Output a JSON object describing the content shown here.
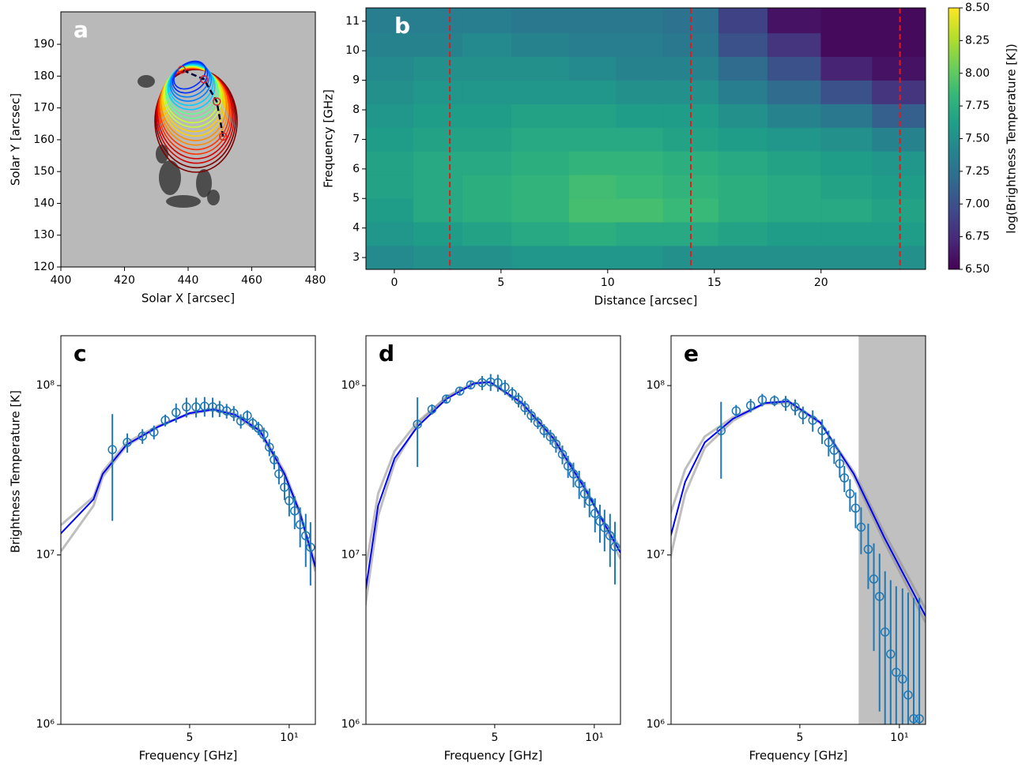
{
  "chart_data": [
    {
      "type": "solar-map",
      "label": "a",
      "xlabel": "Solar X [arcsec]",
      "ylabel": "Solar Y [arcsec]",
      "xlim": [
        400,
        480
      ],
      "ylim": [
        120,
        200.2
      ],
      "xticks": [
        400,
        420,
        440,
        460,
        480
      ],
      "yticks": [
        120,
        130,
        140,
        150,
        160,
        170,
        180,
        190
      ],
      "path": {
        "x": [
          451,
          449,
          445,
          438
        ],
        "y": [
          161,
          172,
          179,
          182
        ],
        "color": "#000033"
      }
    },
    {
      "type": "heatmap",
      "label": "b",
      "xlabel": "Distance [arcsec]",
      "ylabel": "Frequency [GHz]",
      "xlim": [
        -1.33,
        24.9
      ],
      "ylim": [
        2.6,
        11.45
      ],
      "xticks": [
        0,
        5,
        10,
        15,
        20
      ],
      "yticks": [
        3,
        4,
        5,
        6,
        7,
        8,
        9,
        10,
        11
      ],
      "x_edges": [
        -1.33,
        0.9,
        3.2,
        5.5,
        8.2,
        10.4,
        12.6,
        15.2,
        17.5,
        20.0,
        22.4,
        24.9
      ],
      "y_edges": [
        2.6,
        3.4,
        4.2,
        5.0,
        5.8,
        6.6,
        7.4,
        8.2,
        9.0,
        9.8,
        10.6,
        11.45
      ],
      "values": [
        [
          7.45,
          7.5,
          7.5,
          7.55,
          7.55,
          7.55,
          7.5,
          7.5,
          7.5,
          7.5,
          7.5
        ],
        [
          7.55,
          7.6,
          7.65,
          7.7,
          7.75,
          7.7,
          7.7,
          7.65,
          7.6,
          7.6,
          7.6
        ],
        [
          7.6,
          7.7,
          7.75,
          7.8,
          7.9,
          7.9,
          7.85,
          7.75,
          7.7,
          7.7,
          7.65
        ],
        [
          7.65,
          7.7,
          7.75,
          7.8,
          7.88,
          7.85,
          7.8,
          7.75,
          7.7,
          7.65,
          7.6
        ],
        [
          7.65,
          7.7,
          7.7,
          7.75,
          7.8,
          7.8,
          7.75,
          7.7,
          7.65,
          7.6,
          7.55
        ],
        [
          7.6,
          7.65,
          7.65,
          7.7,
          7.7,
          7.7,
          7.65,
          7.6,
          7.55,
          7.5,
          7.4
        ],
        [
          7.55,
          7.6,
          7.6,
          7.65,
          7.65,
          7.6,
          7.6,
          7.5,
          7.4,
          7.3,
          7.1
        ],
        [
          7.5,
          7.55,
          7.55,
          7.55,
          7.55,
          7.5,
          7.5,
          7.35,
          7.2,
          7.0,
          6.8
        ],
        [
          7.45,
          7.5,
          7.5,
          7.5,
          7.45,
          7.4,
          7.4,
          7.2,
          7.0,
          6.7,
          6.6
        ],
        [
          7.4,
          7.4,
          7.45,
          7.4,
          7.35,
          7.35,
          7.3,
          7.0,
          6.8,
          6.55,
          6.55
        ],
        [
          7.35,
          7.35,
          7.35,
          7.3,
          7.3,
          7.3,
          7.25,
          6.9,
          6.6,
          6.55,
          6.55
        ]
      ],
      "colormap": "viridis",
      "colorbar": {
        "label": "log(Brightness Temperature [K])",
        "lim": [
          6.5,
          8.5
        ],
        "ticks": [
          {
            "value": 6.5,
            "label": "6.50"
          },
          {
            "value": 6.75,
            "label": "6.75"
          },
          {
            "value": 7,
            "label": "7.00"
          },
          {
            "value": 7.25,
            "label": "7.25"
          },
          {
            "value": 7.5,
            "label": "7.50"
          },
          {
            "value": 7.75,
            "label": "7.75"
          },
          {
            "value": 8,
            "label": "8.00"
          },
          {
            "value": 8.25,
            "label": "8.25"
          },
          {
            "value": 8.5,
            "label": "8.50"
          }
        ]
      },
      "vlines": {
        "x": [
          2.6,
          13.9,
          23.7
        ],
        "color": "#e31a1c"
      }
    },
    {
      "type": "spectrum",
      "label": "c",
      "xlabel": "Frequency [GHz]",
      "ylabel": "Brightness Temperature [K]",
      "log_x": true,
      "log_y": true,
      "xlim": [
        2.04,
        12
      ],
      "ylim": [
        1000000,
        197000000
      ],
      "xticks": [
        5,
        {
          "value": 10,
          "label": "10¹"
        }
      ],
      "yticks": [
        {
          "value": 1000000,
          "label": "10⁶"
        },
        {
          "value": 10000000,
          "label": "10⁷"
        },
        {
          "value": 100000000,
          "label": "10⁸"
        }
      ],
      "observed": {
        "color": "#1f77b4",
        "x": [
          2.92,
          3.24,
          3.6,
          3.9,
          4.22,
          4.55,
          4.89,
          5.23,
          5.55,
          5.87,
          6.16,
          6.47,
          6.8,
          7.14,
          7.47,
          7.76,
          8.07,
          8.38,
          8.71,
          9.01,
          9.31,
          9.68,
          10.0,
          10.39,
          10.79,
          11.22,
          11.6
        ],
        "values": [
          41900000.0,
          46200000.0,
          50300000.0,
          53100000.0,
          62400000.0,
          69400000.0,
          74800000.0,
          74800000.0,
          75600000.0,
          74800000.0,
          73200000.0,
          70900000.0,
          68700000.0,
          61700000.0,
          66500000.0,
          59800000.0,
          56000000.0,
          51400000.0,
          43300000.0,
          36500000.0,
          30100000.0,
          25100000.0,
          20900000.0,
          18200000.0,
          15100000.0,
          13000000.0,
          11100000.0
        ],
        "yerr": [
          26000000.0,
          6000000.0,
          5000000.0,
          5000000.0,
          5000000.0,
          9000000.0,
          10000000.0,
          10000000.0,
          10000000.0,
          10000000.0,
          8000000.0,
          7000000.0,
          7000000.0,
          6000000.0,
          5000000.0,
          5000000.0,
          5000000.0,
          5000000.0,
          5000000.0,
          4500000.0,
          4000000.0,
          4000000.0,
          4000000.0,
          4000000.0,
          4000000.0,
          4500000.0,
          4500000.0
        ]
      },
      "fit": {
        "color": "#0000ff",
        "x": [
          2.04,
          2.56,
          2.73,
          3.22,
          4.02,
          5.0,
          5.9,
          6.89,
          8.15,
          9.68,
          10.79,
          12.0
        ],
        "values": [
          13400000.0,
          21300000.0,
          30100000.0,
          44700000.0,
          57200000.0,
          68700000.0,
          72400000.0,
          67000000.0,
          54200000.0,
          30100000.0,
          17600000.0,
          8500000.0
        ]
      },
      "samples": {
        "color": "#888888",
        "values": [
          [
            10500000.0,
            19500000.0,
            29000000.0,
            44000000.0,
            57000000.0,
            69000000.0,
            73000000.0,
            68000000.0,
            55000000.0,
            31000000.0,
            18000000.0,
            8000000.0
          ],
          [
            15000000.0,
            22000000.0,
            31000000.0,
            46000000.0,
            58000000.0,
            68000000.0,
            72000000.0,
            66000000.0,
            53000000.0,
            29500000.0,
            17000000.0,
            9000000.0
          ]
        ]
      }
    },
    {
      "type": "spectrum",
      "label": "d",
      "xlabel": "Frequency [GHz]",
      "log_x": true,
      "log_y": true,
      "xlim": [
        2.04,
        12
      ],
      "ylim": [
        1000000,
        197000000
      ],
      "xticks": [
        5,
        {
          "value": 10,
          "label": "10¹"
        }
      ],
      "yticks": [
        {
          "value": 1000000,
          "label": "10⁶"
        },
        {
          "value": 10000000,
          "label": "10⁷"
        },
        {
          "value": 100000000,
          "label": "10⁸"
        }
      ],
      "observed": {
        "color": "#1f77b4",
        "x": [
          2.92,
          3.23,
          3.57,
          3.92,
          4.23,
          4.58,
          4.86,
          5.11,
          5.37,
          5.65,
          5.9,
          6.17,
          6.45,
          6.75,
          7.05,
          7.37,
          7.66,
          8.01,
          8.33,
          8.65,
          9.0,
          9.35,
          9.67,
          10.05,
          10.4,
          10.74,
          11.16,
          11.55
        ],
        "values": [
          59100000.0,
          72400000.0,
          83300000.0,
          92800000.0,
          101000000.0,
          104000000.0,
          105000000.0,
          104000000.0,
          97900000.0,
          89800000.0,
          82400000.0,
          74100000.0,
          66500000.0,
          60400000.0,
          54200000.0,
          49800000.0,
          45200000.0,
          39300000.0,
          33500000.0,
          30100000.0,
          26400000.0,
          23000000.0,
          20700000.0,
          17600000.0,
          15800000.0,
          14500000.0,
          13000000.0,
          11200000.0
        ],
        "yerr": [
          26000000.0,
          5000000.0,
          5000000.0,
          5000000.0,
          5000000.0,
          10000000.0,
          12000000.0,
          12000000.0,
          10000000.0,
          8000000.0,
          8000000.0,
          7000000.0,
          6000000.0,
          5000000.0,
          5000000.0,
          5000000.0,
          5000000.0,
          5000000.0,
          5000000.0,
          5000000.0,
          5000000.0,
          4000000.0,
          4000000.0,
          4000000.0,
          4000000.0,
          4000000.0,
          4500000.0,
          4500000.0
        ]
      },
      "fit": {
        "color": "#0000ff",
        "x": [
          2.03,
          2.22,
          2.49,
          2.92,
          3.57,
          4.33,
          4.84,
          6.04,
          7.53,
          9.41,
          12.0
        ],
        "values": [
          6000000.0,
          19500000.0,
          37200000.0,
          57200000.0,
          83300000.0,
          103000000.0,
          105000000.0,
          78900000.0,
          48700000.0,
          24300000.0,
          10300000.0
        ]
      },
      "samples": {
        "color": "#888888",
        "values": [
          [
            5000000.0,
            17000000.0,
            35000000.0,
            59000000.0,
            86000000.0,
            104000000.0,
            105000000.0,
            77000000.0,
            47000000.0,
            23500000.0,
            11000000.0
          ],
          [
            8000000.0,
            23000000.0,
            41000000.0,
            61000000.0,
            85000000.0,
            102000000.0,
            104000000.0,
            80000000.0,
            50000000.0,
            25000000.0,
            9500000.0
          ]
        ]
      }
    },
    {
      "type": "spectrum",
      "label": "e",
      "xlabel": "Frequency [GHz]",
      "log_x": true,
      "log_y": true,
      "xlim": [
        2.04,
        12
      ],
      "ylim": [
        1000000,
        197000000
      ],
      "xticks": [
        5,
        {
          "value": 10,
          "label": "10¹"
        }
      ],
      "yticks": [
        {
          "value": 1000000,
          "label": "10⁶"
        },
        {
          "value": 10000000,
          "label": "10⁷"
        },
        {
          "value": 100000000,
          "label": "10⁸"
        }
      ],
      "shaded_xrange": [
        7.53,
        12
      ],
      "shade_color": "#c0c0c0",
      "observed": {
        "color": "#1f77b4",
        "x": [
          2.89,
          3.21,
          3.55,
          3.85,
          4.19,
          4.53,
          4.84,
          5.11,
          5.47,
          5.84,
          6.11,
          6.35,
          6.6,
          6.82,
          7.09,
          7.37,
          7.66,
          8.05,
          8.37,
          8.71,
          9.05,
          9.41,
          9.78,
          10.22,
          10.63,
          11.05,
          11.49
        ],
        "values": [
          54200000.0,
          70900000.0,
          76400000.0,
          82400000.0,
          81500000.0,
          78900000.0,
          74800000.0,
          67200000.0,
          62400000.0,
          54200000.0,
          46200000.0,
          41500000.0,
          34600000.0,
          28500000.0,
          23000000.0,
          18900000.0,
          14600000.0,
          10800000.0,
          7210000.0,
          5690000.0,
          3510000.0,
          2600000.0,
          2030000.0,
          1850000.0,
          1490000.0,
          1080000.0,
          1080000.0
        ],
        "yerr": [
          26000000.0,
          6000000.0,
          7000000.0,
          7000000.0,
          6000000.0,
          8000000.0,
          8000000.0,
          8000000.0,
          9000000.0,
          9000000.0,
          8000000.0,
          7000000.0,
          6000000.0,
          5000000.0,
          5000000.0,
          4500000.0,
          4500000.0,
          4500000.0,
          4500000.0,
          4500000.0,
          4500000.0,
          4500000.0,
          4500000.0,
          4500000.0,
          4500000.0,
          4500000.0,
          4500000.0
        ]
      },
      "fit": {
        "color": "#0000ff",
        "x": [
          2.0,
          2.25,
          2.58,
          3.14,
          3.92,
          4.62,
          5.77,
          7.28,
          9.0,
          12.0
        ],
        "values": [
          11400000.0,
          27000000.0,
          46200000.0,
          63700000.0,
          78900000.0,
          80700000.0,
          60400000.0,
          30100000.0,
          12700000.0,
          4350000.0
        ]
      },
      "samples": {
        "color": "#888888",
        "values": [
          [
            16000000.0,
            32000000.0,
            50000000.0,
            65000000.0,
            78000000.0,
            79000000.0,
            60000000.0,
            31000000.0,
            13500000.0,
            4800000.0
          ],
          [
            8500000.0,
            23000000.0,
            43000000.0,
            62000000.0,
            79000000.0,
            81000000.0,
            61000000.0,
            29000000.0,
            12000000.0,
            4000000.0
          ]
        ]
      }
    }
  ]
}
